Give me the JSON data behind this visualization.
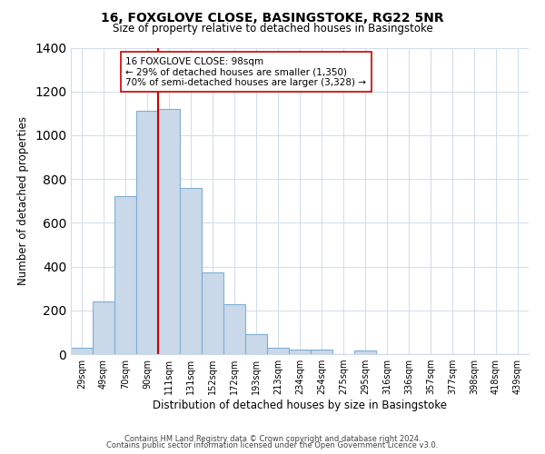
{
  "title": "16, FOXGLOVE CLOSE, BASINGSTOKE, RG22 5NR",
  "subtitle": "Size of property relative to detached houses in Basingstoke",
  "xlabel": "Distribution of detached houses by size in Basingstoke",
  "ylabel": "Number of detached properties",
  "bar_labels": [
    "29sqm",
    "49sqm",
    "70sqm",
    "90sqm",
    "111sqm",
    "131sqm",
    "152sqm",
    "172sqm",
    "193sqm",
    "213sqm",
    "234sqm",
    "254sqm",
    "275sqm",
    "295sqm",
    "316sqm",
    "336sqm",
    "357sqm",
    "377sqm",
    "398sqm",
    "418sqm",
    "439sqm"
  ],
  "bar_values": [
    30,
    240,
    720,
    1110,
    1120,
    760,
    375,
    230,
    90,
    30,
    20,
    20,
    0,
    15,
    0,
    0,
    0,
    0,
    0,
    0,
    0
  ],
  "bar_color": "#c9d9ea",
  "bar_edge_color": "#7faed4",
  "vline_x_idx": 3,
  "vline_color": "#cc0000",
  "ylim": [
    0,
    1400
  ],
  "yticks": [
    0,
    200,
    400,
    600,
    800,
    1000,
    1200,
    1400
  ],
  "annotation_title": "16 FOXGLOVE CLOSE: 98sqm",
  "annotation_line1": "← 29% of detached houses are smaller (1,350)",
  "annotation_line2": "70% of semi-detached houses are larger (3,328) →",
  "annotation_box_color": "#ffffff",
  "annotation_box_edge": "#cc0000",
  "footer1": "Contains HM Land Registry data © Crown copyright and database right 2024.",
  "footer2": "Contains public sector information licensed under the Open Government Licence v3.0."
}
